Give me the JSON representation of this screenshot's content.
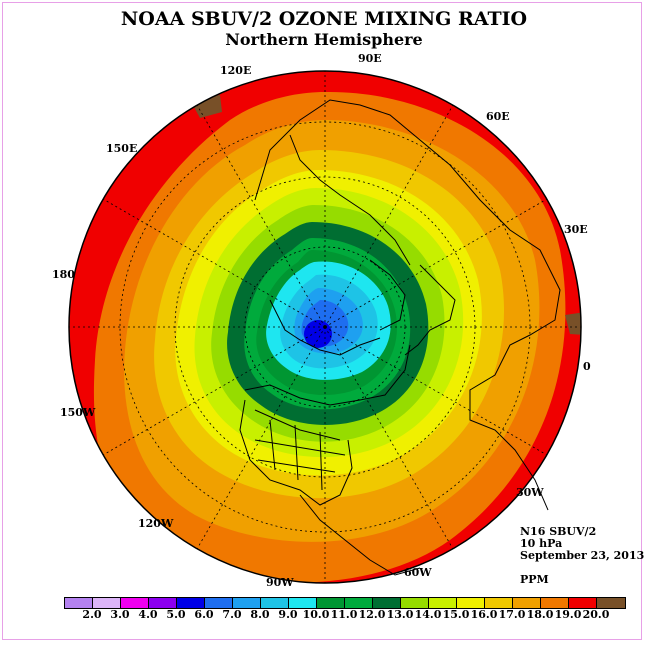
{
  "title": "NOAA SBUV/2 OZONE MIXING RATIO",
  "subtitle": "Northern Hemisphere",
  "longitude_labels": [
    "120E",
    "90E",
    "60E",
    "150E",
    "30E",
    "180",
    "0",
    "150W",
    "30W",
    "120W",
    "60W",
    "90W"
  ],
  "info": {
    "instrument": "N16 SBUV/2",
    "level": "10 hPa",
    "date": "September 23, 2013",
    "units": "PPM"
  },
  "colorbar": {
    "colors": [
      "#b482f0",
      "#dcb4f8",
      "#f000f0",
      "#8c00f0",
      "#0000e6",
      "#1e6ef0",
      "#1ea0f0",
      "#1ec3e6",
      "#1ee6f0",
      "#009632",
      "#00aa3c",
      "#006e32",
      "#96dc00",
      "#c8f000",
      "#f0f000",
      "#f0c800",
      "#f0a000",
      "#f07800",
      "#f00000",
      "#785028"
    ],
    "ticks": [
      "2.0",
      "3.0",
      "4.0",
      "5.0",
      "6.0",
      "7.0",
      "8.0",
      "9.0",
      "10.0",
      "11.0",
      "12.0",
      "13.0",
      "14.0",
      "15.0",
      "16.0",
      "17.0",
      "18.0",
      "19.0",
      "20.0"
    ]
  }
}
